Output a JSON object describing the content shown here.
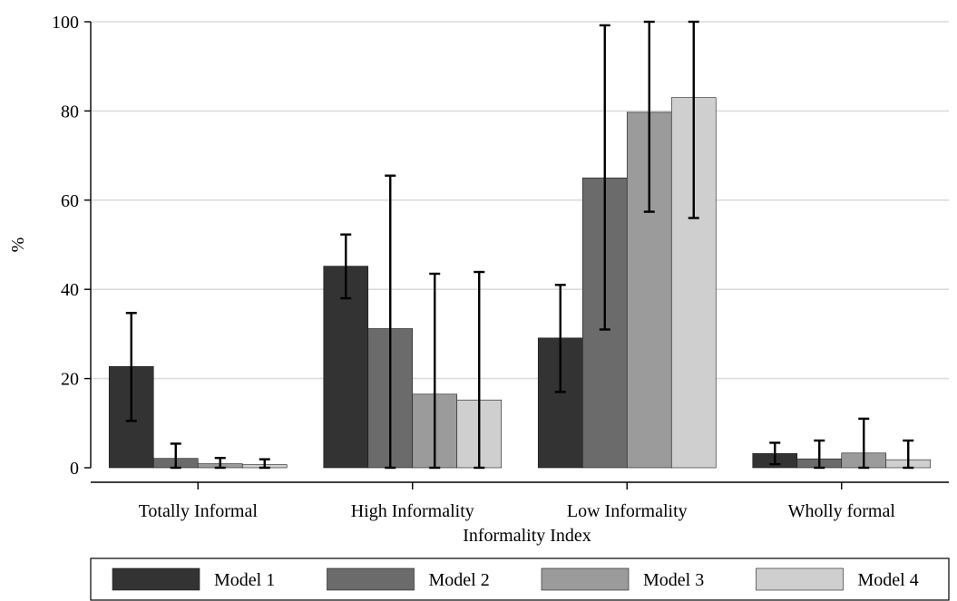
{
  "chart_data": {
    "type": "bar",
    "title": "",
    "xlabel": "Informality Index",
    "ylabel": "%",
    "ylim": [
      0,
      100
    ],
    "yticks": [
      0,
      20,
      40,
      60,
      80,
      100
    ],
    "grid": true,
    "legend_position": "bottom",
    "categories": [
      "Totally Informal",
      "High Informality",
      "Low Informality",
      "Wholly formal"
    ],
    "series": [
      {
        "name": "Model 1",
        "color": "#333333",
        "values": [
          22.7,
          45.2,
          29.1,
          3.2
        ],
        "ci_low": [
          10.5,
          38.0,
          17.0,
          0.8
        ],
        "ci_high": [
          34.7,
          52.3,
          41.0,
          5.6
        ]
      },
      {
        "name": "Model 2",
        "color": "#6b6b6b",
        "values": [
          2.1,
          31.2,
          65.0,
          2.0
        ],
        "ci_low": [
          0.0,
          0.0,
          31.0,
          0.0
        ],
        "ci_high": [
          5.4,
          65.5,
          99.2,
          6.1
        ]
      },
      {
        "name": "Model 3",
        "color": "#9b9b9b",
        "values": [
          0.9,
          16.5,
          79.7,
          3.3
        ],
        "ci_low": [
          0.0,
          0.0,
          57.4,
          0.0
        ],
        "ci_high": [
          2.2,
          43.5,
          100.0,
          11.0
        ]
      },
      {
        "name": "Model 4",
        "color": "#cfcfcf",
        "values": [
          0.7,
          15.2,
          83.0,
          1.8
        ],
        "ci_low": [
          0.0,
          0.0,
          56.0,
          0.0
        ],
        "ci_high": [
          1.9,
          43.9,
          100.0,
          6.1
        ]
      }
    ]
  }
}
